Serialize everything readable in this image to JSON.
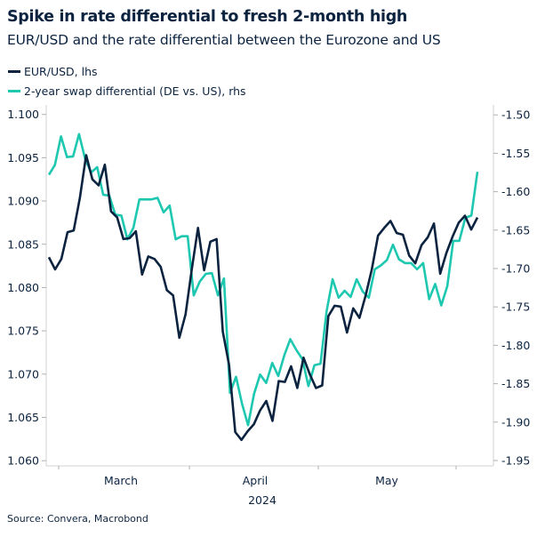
{
  "title": "Spike in rate differential to fresh 2-month high",
  "subtitle": "EUR/USD and the rate differential between the Eurozone and US",
  "source": "Source: Convera, Macrobond",
  "chart_data": {
    "type": "line",
    "title": "Spike in rate differential to fresh 2-month high",
    "subtitle": "EUR/USD and the rate differential between the Eurozone and US",
    "x_tick_labels": [
      "March",
      "April",
      "May"
    ],
    "x_year_label": "2024",
    "legend_placement": "top-left",
    "grid": false,
    "left_axis": {
      "ticks": [
        "1.100",
        "1.095",
        "1.090",
        "1.085",
        "1.080",
        "1.075",
        "1.070",
        "1.065",
        "1.060"
      ],
      "range": [
        1.0594,
        1.1011
      ]
    },
    "right_axis": {
      "ticks": [
        "-1.50",
        "-1.55",
        "-1.60",
        "-1.65",
        "-1.70",
        "-1.75",
        "-1.80",
        "-1.85",
        "-1.90",
        "-1.95"
      ],
      "range": [
        -1.957,
        -1.487
      ]
    },
    "series": [
      {
        "name": "EUR/USD, lhs",
        "axis": "left",
        "color": "#0c2340",
        "values": [
          1.0835,
          1.0821,
          1.0833,
          1.0864,
          1.0866,
          1.0904,
          1.0953,
          1.0925,
          1.0918,
          1.0942,
          1.0888,
          1.0881,
          1.0856,
          1.0857,
          1.0865,
          1.0815,
          1.0836,
          1.0833,
          1.0824,
          1.0797,
          1.0791,
          1.0742,
          1.0769,
          1.0821,
          1.0869,
          1.082,
          1.0853,
          1.0856,
          1.0749,
          1.0711,
          1.0633,
          1.0624,
          1.0634,
          1.0642,
          1.0658,
          1.0669,
          1.0646,
          1.0692,
          1.0691,
          1.0709,
          1.0684,
          1.0719,
          1.07,
          1.0684,
          1.0687,
          1.0767,
          1.0779,
          1.0778,
          1.0748,
          1.0776,
          1.0765,
          1.0791,
          1.0821,
          1.086,
          1.0869,
          1.0877,
          1.0863,
          1.0861,
          1.0837,
          1.0828,
          1.0849,
          1.0858,
          1.0874,
          1.0816,
          1.084,
          1.0859,
          1.0875,
          1.0883,
          1.0867,
          1.0881
        ]
      },
      {
        "name": "2-year swap differential (DE vs. US), rhs",
        "axis": "right",
        "color": "#1ec8b0",
        "values": [
          -1.578,
          -1.565,
          -1.528,
          -1.555,
          -1.554,
          -1.525,
          -1.557,
          -1.575,
          -1.568,
          -1.604,
          -1.605,
          -1.63,
          -1.631,
          -1.662,
          -1.647,
          -1.61,
          -1.61,
          -1.61,
          -1.608,
          -1.627,
          -1.618,
          -1.662,
          -1.658,
          -1.658,
          -1.735,
          -1.717,
          -1.707,
          -1.706,
          -1.735,
          -1.713,
          -1.862,
          -1.841,
          -1.876,
          -1.904,
          -1.863,
          -1.838,
          -1.849,
          -1.823,
          -1.84,
          -1.813,
          -1.792,
          -1.806,
          -1.818,
          -1.853,
          -1.826,
          -1.824,
          -1.756,
          -1.714,
          -1.738,
          -1.729,
          -1.737,
          -1.714,
          -1.73,
          -1.738,
          -1.701,
          -1.696,
          -1.689,
          -1.669,
          -1.688,
          -1.693,
          -1.693,
          -1.701,
          -1.693,
          -1.74,
          -1.72,
          -1.748,
          -1.723,
          -1.664,
          -1.664,
          -1.634,
          -1.631,
          -1.574
        ]
      }
    ]
  }
}
